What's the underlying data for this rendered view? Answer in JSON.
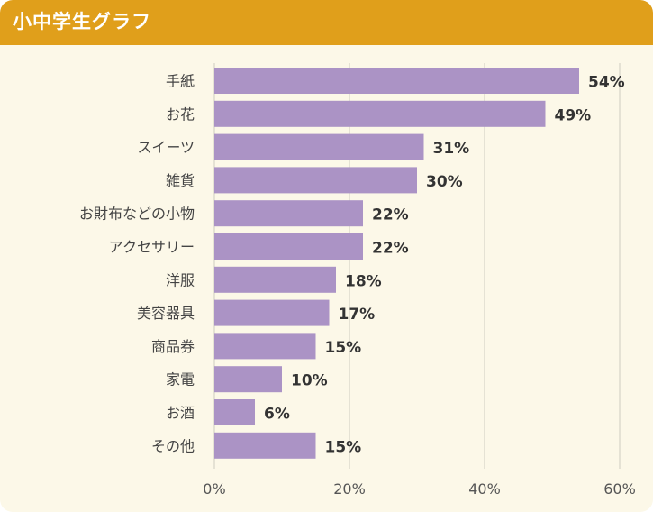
{
  "header": {
    "title": "小中学生グラフ"
  },
  "colors": {
    "header_bg": "#e09f1b",
    "card_bg": "#fcf8e8",
    "bar": "#ab93c5",
    "grid": "#d6d3c8"
  },
  "chart_data": {
    "type": "bar",
    "orientation": "horizontal",
    "title": "小中学生グラフ",
    "categories": [
      "手紙",
      "お花",
      "スイーツ",
      "雑貨",
      "お財布などの小物",
      "アクセサリー",
      "洋服",
      "美容器具",
      "商品券",
      "家電",
      "お酒",
      "その他"
    ],
    "values": [
      54,
      49,
      31,
      30,
      22,
      22,
      18,
      17,
      15,
      10,
      6,
      15
    ],
    "value_labels": [
      "54%",
      "49%",
      "31%",
      "30%",
      "22%",
      "22%",
      "18%",
      "17%",
      "15%",
      "10%",
      "6%",
      "15%"
    ],
    "xlim": [
      0,
      60
    ],
    "xticks": [
      0,
      20,
      40,
      60
    ],
    "xtick_labels": [
      "0%",
      "20%",
      "40%",
      "60%"
    ],
    "xlabel": "",
    "ylabel": "",
    "grid": true
  }
}
